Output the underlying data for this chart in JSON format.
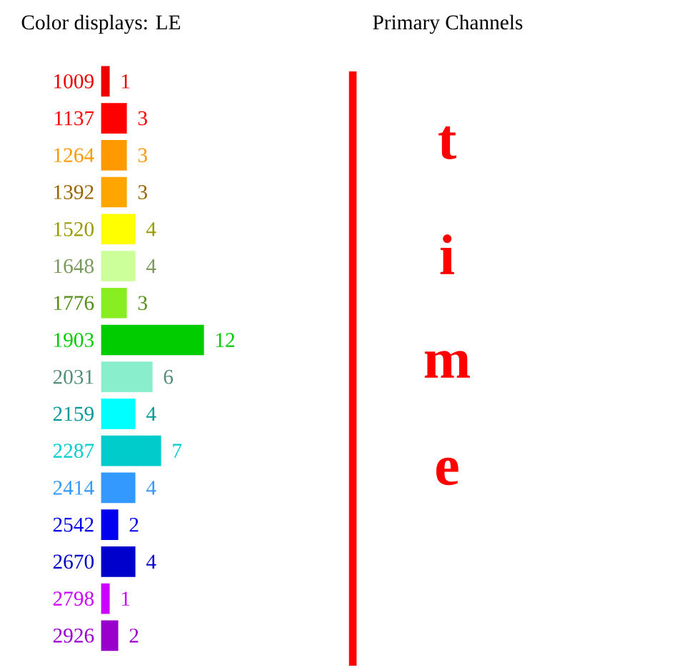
{
  "chart_data": {
    "type": "bar",
    "orientation": "horizontal",
    "title": "Color displays: LE",
    "annotations": [
      "Primary Channels",
      "t",
      "i",
      "m",
      "e"
    ],
    "categories": [
      "1009",
      "1137",
      "1264",
      "1392",
      "1520",
      "1648",
      "1776",
      "1903",
      "2031",
      "2159",
      "2287",
      "2414",
      "2542",
      "2670",
      "2798",
      "2926"
    ],
    "values": [
      1,
      3,
      3,
      3,
      4,
      4,
      3,
      12,
      6,
      4,
      7,
      4,
      2,
      4,
      1,
      2
    ],
    "colors": [
      "#ee0000",
      "#ff0000",
      "#ff9900",
      "#ffa500",
      "#ffff00",
      "#ccff99",
      "#88ee22",
      "#00cc00",
      "#88eecc",
      "#00ffff",
      "#00cccc",
      "#3399ff",
      "#0000ee",
      "#0000cc",
      "#cc00ff",
      "#9900cc"
    ],
    "data_labels": true
  }
}
